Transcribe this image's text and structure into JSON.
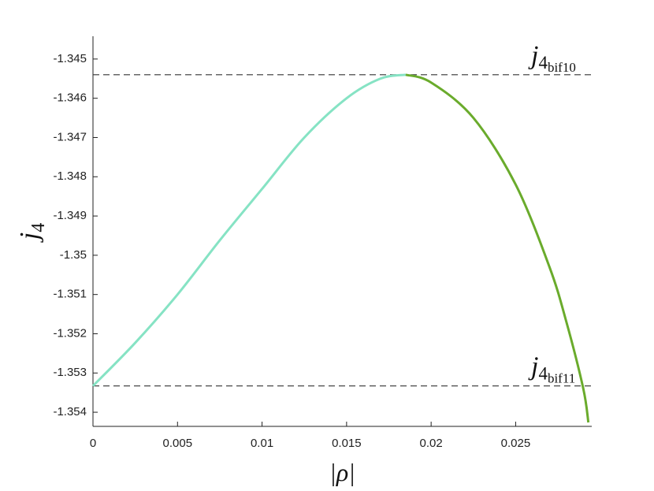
{
  "chart_data": {
    "type": "line",
    "xlabel": "|ρ|",
    "ylabel": {
      "base": "j",
      "sub": "4"
    },
    "xlim": [
      0,
      0.0295
    ],
    "ylim": [
      -1.35436,
      -1.34442
    ],
    "xticks": [
      0,
      0.005,
      0.01,
      0.015,
      0.02,
      0.025
    ],
    "yticks": [
      -1.345,
      -1.346,
      -1.347,
      -1.348,
      -1.349,
      -1.35,
      -1.351,
      -1.352,
      -1.353,
      -1.354
    ],
    "series": [
      {
        "color": "#86e3c4",
        "x": [
          0,
          0.0025,
          0.005,
          0.0075,
          0.01,
          0.0125,
          0.015,
          0.017,
          0.0185
        ],
        "values": [
          -1.35333,
          -1.35223,
          -1.351,
          -1.34962,
          -1.34831,
          -1.347,
          -1.346,
          -1.3455,
          -1.3454
        ]
      },
      {
        "color": "#6aab2c",
        "x": [
          0.0185,
          0.02,
          0.0225,
          0.025,
          0.027,
          0.028,
          0.029,
          0.0293
        ],
        "values": [
          -1.3454,
          -1.3456,
          -1.3465,
          -1.3482,
          -1.3503,
          -1.3517,
          -1.3534,
          -1.35426
        ]
      }
    ],
    "reference_lines": [
      {
        "value": -1.3454,
        "base": "j",
        "sub": "4",
        "subsub": "bif10"
      },
      {
        "value": -1.35333,
        "base": "j",
        "sub": "4",
        "subsub": "bif11"
      }
    ]
  }
}
